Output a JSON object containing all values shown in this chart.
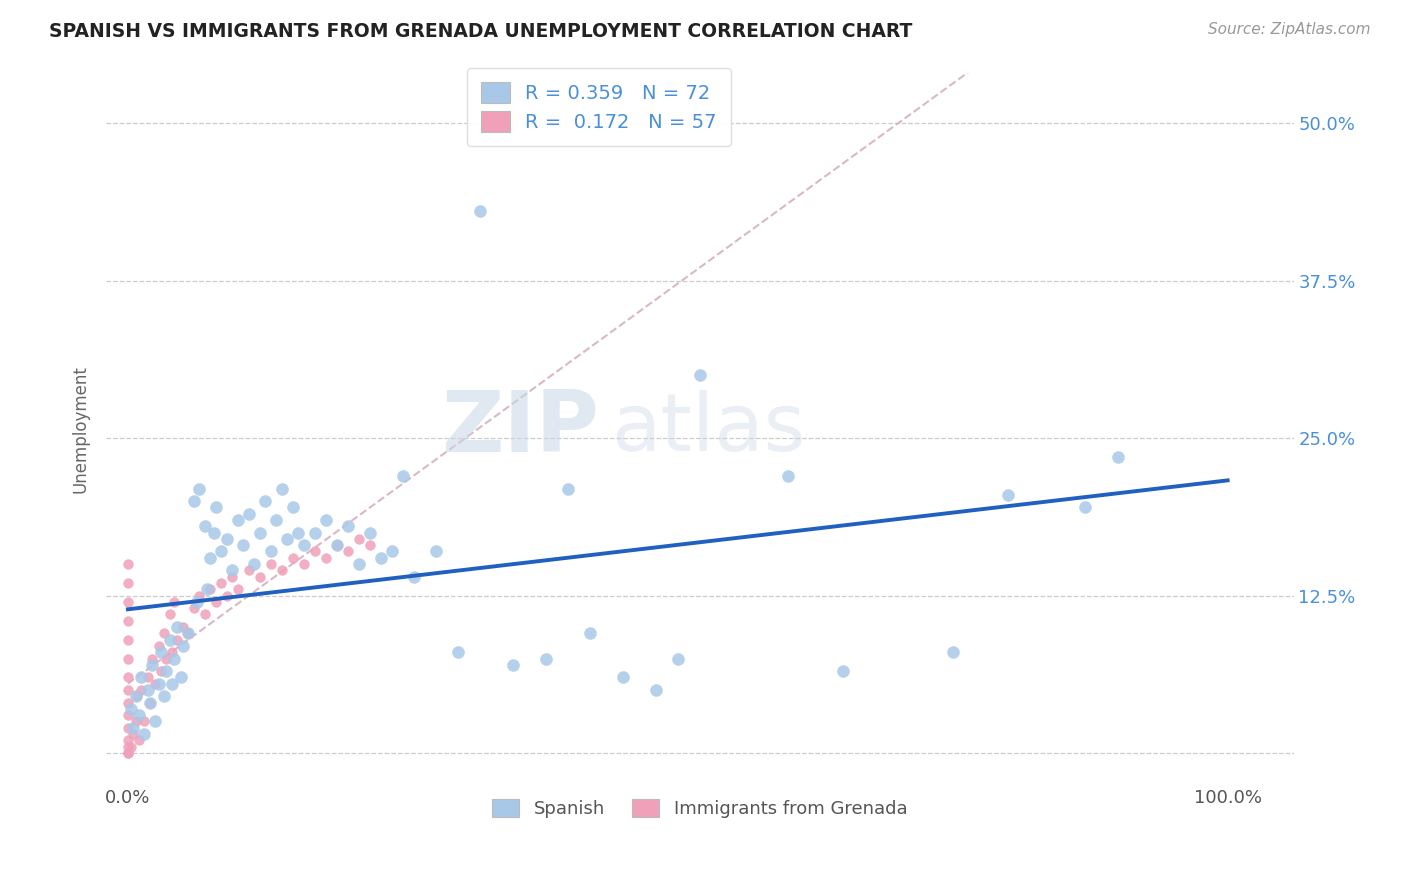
{
  "title": "SPANISH VS IMMIGRANTS FROM GRENADA UNEMPLOYMENT CORRELATION CHART",
  "source": "Source: ZipAtlas.com",
  "ylabel": "Unemployment",
  "xlim": [
    -0.02,
    1.06
  ],
  "ylim": [
    -0.025,
    0.54
  ],
  "x_ticks": [
    0.0,
    1.0
  ],
  "x_tick_labels": [
    "0.0%",
    "100.0%"
  ],
  "y_ticks": [
    0.0,
    0.125,
    0.25,
    0.375,
    0.5
  ],
  "y_tick_labels": [
    "",
    "12.5%",
    "25.0%",
    "37.5%",
    "50.0%"
  ],
  "R_spanish": 0.359,
  "N_spanish": 72,
  "R_grenada": 0.172,
  "N_grenada": 57,
  "spanish_color": "#a8c8e8",
  "grenada_color": "#f0a0b8",
  "trend_spanish_color": "#2060c0",
  "trend_grenada_color": "#e8b0c0",
  "watermark_zip": "ZIP",
  "watermark_atlas": "atlas",
  "spanish_x": [
    0.003,
    0.005,
    0.007,
    0.01,
    0.012,
    0.015,
    0.018,
    0.02,
    0.022,
    0.025,
    0.028,
    0.03,
    0.033,
    0.035,
    0.038,
    0.04,
    0.042,
    0.045,
    0.048,
    0.05,
    0.055,
    0.06,
    0.063,
    0.065,
    0.07,
    0.072,
    0.075,
    0.078,
    0.08,
    0.085,
    0.09,
    0.095,
    0.1,
    0.105,
    0.11,
    0.115,
    0.12,
    0.125,
    0.13,
    0.135,
    0.14,
    0.145,
    0.15,
    0.155,
    0.16,
    0.17,
    0.18,
    0.19,
    0.2,
    0.21,
    0.22,
    0.23,
    0.24,
    0.25,
    0.26,
    0.28,
    0.3,
    0.32,
    0.35,
    0.38,
    0.4,
    0.42,
    0.45,
    0.48,
    0.5,
    0.52,
    0.6,
    0.65,
    0.75,
    0.8,
    0.87,
    0.9
  ],
  "spanish_y": [
    0.035,
    0.02,
    0.045,
    0.03,
    0.06,
    0.015,
    0.05,
    0.04,
    0.07,
    0.025,
    0.055,
    0.08,
    0.045,
    0.065,
    0.09,
    0.055,
    0.075,
    0.1,
    0.06,
    0.085,
    0.095,
    0.2,
    0.12,
    0.21,
    0.18,
    0.13,
    0.155,
    0.175,
    0.195,
    0.16,
    0.17,
    0.145,
    0.185,
    0.165,
    0.19,
    0.15,
    0.175,
    0.2,
    0.16,
    0.185,
    0.21,
    0.17,
    0.195,
    0.175,
    0.165,
    0.175,
    0.185,
    0.165,
    0.18,
    0.15,
    0.175,
    0.155,
    0.16,
    0.22,
    0.14,
    0.16,
    0.08,
    0.43,
    0.07,
    0.075,
    0.21,
    0.095,
    0.06,
    0.05,
    0.075,
    0.3,
    0.22,
    0.065,
    0.08,
    0.205,
    0.195,
    0.235
  ],
  "grenada_x": [
    0.0,
    0.0,
    0.0,
    0.0,
    0.0,
    0.0,
    0.0,
    0.0,
    0.0,
    0.0,
    0.0,
    0.0,
    0.0,
    0.0,
    0.0,
    0.003,
    0.005,
    0.007,
    0.008,
    0.01,
    0.012,
    0.015,
    0.018,
    0.02,
    0.022,
    0.025,
    0.028,
    0.03,
    0.033,
    0.035,
    0.038,
    0.04,
    0.042,
    0.045,
    0.05,
    0.055,
    0.06,
    0.065,
    0.07,
    0.075,
    0.08,
    0.085,
    0.09,
    0.095,
    0.1,
    0.11,
    0.12,
    0.13,
    0.14,
    0.15,
    0.16,
    0.17,
    0.18,
    0.19,
    0.2,
    0.21,
    0.22
  ],
  "grenada_y": [
    0.0,
    0.0,
    0.005,
    0.01,
    0.02,
    0.03,
    0.04,
    0.05,
    0.06,
    0.075,
    0.09,
    0.105,
    0.12,
    0.135,
    0.15,
    0.005,
    0.015,
    0.025,
    0.045,
    0.01,
    0.05,
    0.025,
    0.06,
    0.04,
    0.075,
    0.055,
    0.085,
    0.065,
    0.095,
    0.075,
    0.11,
    0.08,
    0.12,
    0.09,
    0.1,
    0.095,
    0.115,
    0.125,
    0.11,
    0.13,
    0.12,
    0.135,
    0.125,
    0.14,
    0.13,
    0.145,
    0.14,
    0.15,
    0.145,
    0.155,
    0.15,
    0.16,
    0.155,
    0.165,
    0.16,
    0.17,
    0.165
  ]
}
